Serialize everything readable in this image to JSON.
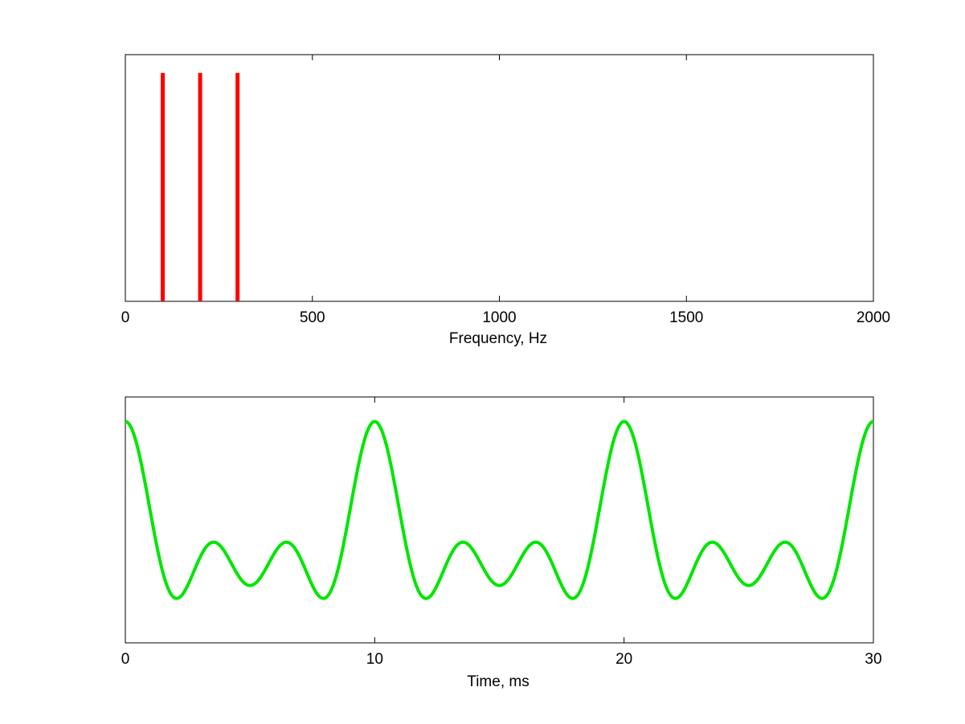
{
  "chart_data": [
    {
      "type": "bar",
      "name": "spectrum",
      "xlabel": "Frequency, Hz",
      "ylabel": "",
      "xlim": [
        0,
        2000
      ],
      "ylim": [
        0,
        1.08
      ],
      "xticks": [
        0,
        500,
        1000,
        1500,
        2000
      ],
      "xtick_labels": [
        "0",
        "500",
        "1000",
        "1500",
        "2000"
      ],
      "y_ticks_shown": false,
      "grid": false,
      "color": "#ff0000",
      "bars": [
        {
          "x": 100,
          "value": 1.0
        },
        {
          "x": 200,
          "value": 1.0
        },
        {
          "x": 300,
          "value": 1.0
        }
      ]
    },
    {
      "type": "line",
      "name": "waveform",
      "xlabel": "Time, ms",
      "ylabel": "",
      "xlim": [
        0,
        30
      ],
      "ylim": [
        -2.4,
        3.6
      ],
      "xticks": [
        0,
        10,
        20,
        30
      ],
      "xtick_labels": [
        "0",
        "10",
        "20",
        "30"
      ],
      "y_ticks_shown": false,
      "grid": false,
      "color": "#00e600",
      "components_hz": [
        100,
        200,
        300
      ],
      "amplitudes": [
        1,
        1,
        1
      ],
      "duration_ms": 30
    }
  ]
}
